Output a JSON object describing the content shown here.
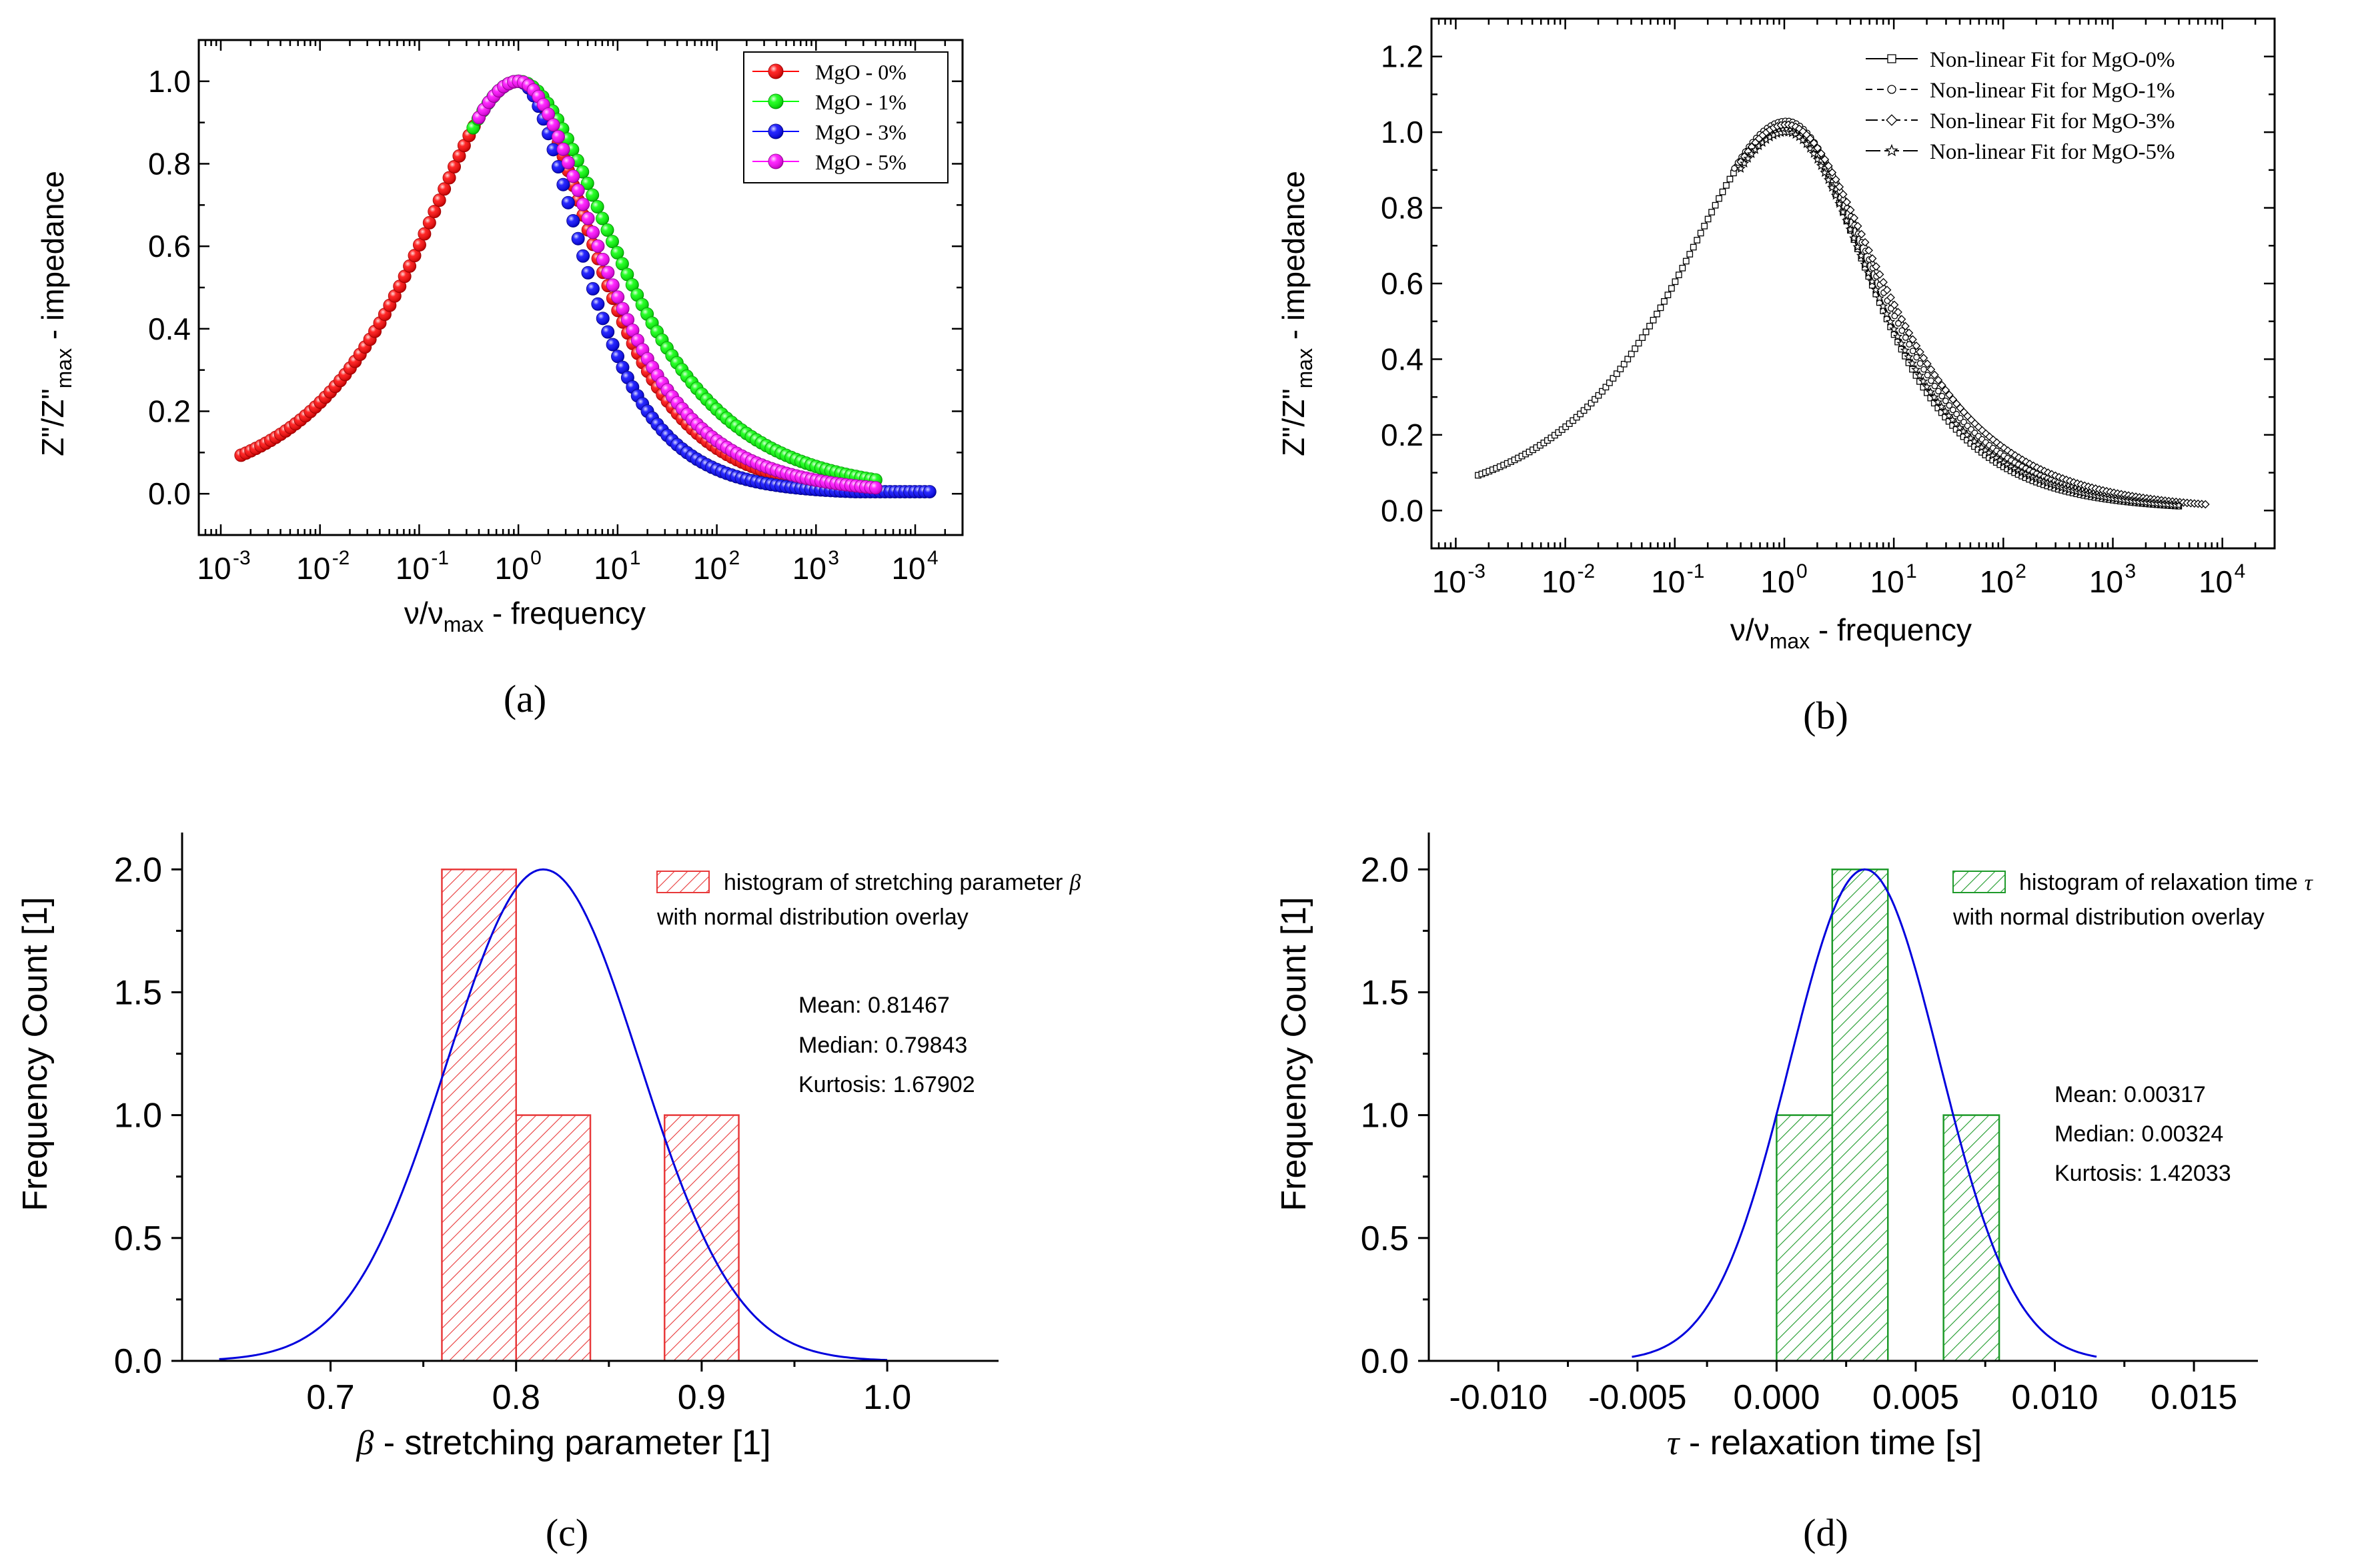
{
  "figure_labels": {
    "a": "(a)",
    "b": "(b)",
    "c": "(c)",
    "d": "(d)"
  },
  "chart_data": [
    {
      "id": "a",
      "type": "scatter",
      "xscale": "log",
      "xlim": [
        0.0006,
        30000
      ],
      "ylim": [
        -0.1,
        1.1
      ],
      "xtick_exponents": [
        "-3",
        "-2",
        "-1",
        "0",
        "1",
        "2",
        "3",
        "4"
      ],
      "ytick_labels": [
        "0.0",
        "0.2",
        "0.4",
        "0.6",
        "0.8",
        "1.0"
      ],
      "ylabel": {
        "a": "Z\"/Z\"",
        "sub": "max",
        "b": " - impedance"
      },
      "xlabel": {
        "a": "ν/ν",
        "sub": "max",
        "b": " - frequency"
      },
      "legend_position": "top-right",
      "series": [
        {
          "name": "MgO - 0%",
          "color": "#ff0000",
          "edge": "#b00000",
          "x_range": [
            0.0016,
            4000
          ],
          "beta": 0.78,
          "taper": 1.0
        },
        {
          "name": "MgO - 1%",
          "color": "#00ff00",
          "edge": "#00a000",
          "x_range": [
            0.35,
            4000
          ],
          "beta": 0.72,
          "taper": 0.85
        },
        {
          "name": "MgO - 3%",
          "color": "#0000ff",
          "edge": "#000090",
          "x_range": [
            0.45,
            14000
          ],
          "beta": 0.95,
          "taper": 1.0
        },
        {
          "name": "MgO - 5%",
          "color": "#ff00ff",
          "edge": "#a000a0",
          "x_range": [
            0.4,
            4000
          ],
          "beta": 0.82,
          "taper": 0.9
        }
      ]
    },
    {
      "id": "b",
      "type": "line",
      "xscale": "log",
      "xlim": [
        0.0006,
        30000
      ],
      "ylim": [
        -0.1,
        1.3
      ],
      "xtick_exponents": [
        "-3",
        "-2",
        "-1",
        "0",
        "1",
        "2",
        "3",
        "4"
      ],
      "ytick_labels": [
        "0.0",
        "0.2",
        "0.4",
        "0.6",
        "0.8",
        "1.0",
        "1.2"
      ],
      "ylabel": {
        "a": "Z\"/Z\"",
        "sub": "max",
        "b": " - impedance"
      },
      "xlabel": {
        "a": "ν/ν",
        "sub": "max",
        "b": " - frequency"
      },
      "legend_position": "top-right",
      "series": [
        {
          "name": "Non-linear Fit for MgO-0%",
          "marker": "square",
          "dash": "",
          "x_range": [
            0.0016,
            4000
          ],
          "beta": 0.78,
          "peak": 1.02
        },
        {
          "name": "Non-linear Fit for MgO-1%",
          "marker": "circle",
          "dash": "10,7",
          "x_range": [
            0.35,
            4000
          ],
          "beta": 0.72,
          "peak": 1.03
        },
        {
          "name": "Non-linear Fit for MgO-3%",
          "marker": "diamond",
          "dash": "18,6,4,6",
          "x_range": [
            0.4,
            7000
          ],
          "beta": 0.68,
          "peak": 1.02
        },
        {
          "name": "Non-linear Fit for MgO-5%",
          "marker": "star",
          "dash": "22,6",
          "x_range": [
            0.4,
            4000
          ],
          "beta": 0.75,
          "peak": 1.0
        }
      ]
    },
    {
      "id": "c",
      "type": "bar",
      "xlim": [
        0.62,
        1.06
      ],
      "ylim": [
        0,
        2.15
      ],
      "xticks": [
        0.7,
        0.8,
        0.9,
        1.0
      ],
      "xtick_labels": [
        "0.7",
        "0.8",
        "0.9",
        "1.0"
      ],
      "ytick_labels": [
        "0.0",
        "0.5",
        "1.0",
        "1.5",
        "2.0"
      ],
      "bins": [
        {
          "x0": 0.76,
          "x1": 0.8,
          "count": 2
        },
        {
          "x0": 0.8,
          "x1": 0.84,
          "count": 1
        },
        {
          "x0": 0.88,
          "x1": 0.92,
          "count": 1
        }
      ],
      "curve": {
        "type": "normal",
        "mean": 0.81467,
        "sd": 0.052,
        "peak": 2.0,
        "x_range": [
          0.64,
          1.0
        ]
      },
      "bar_color": "#e8393a",
      "curve_color": "#0000dd",
      "ylabel": "Frequency Count   [1]",
      "xlabel_sym": "β",
      "xlabel_text": " - stretching parameter   [1]",
      "legend": {
        "line1": "histogram of stretching parameter",
        "sym": "β",
        "line2": "with normal distribution overlay"
      },
      "stats": [
        "Mean: 0.81467",
        "Median: 0.79843",
        "Kurtosis: 1.67902"
      ]
    },
    {
      "id": "d",
      "type": "bar",
      "xlim": [
        -0.0125,
        0.0173
      ],
      "ylim": [
        0,
        2.15
      ],
      "xticks": [
        -0.01,
        -0.005,
        0.0,
        0.005,
        0.01,
        0.015
      ],
      "xtick_labels": [
        "-0.010",
        "-0.005",
        "0.000",
        "0.005",
        "0.010",
        "0.015"
      ],
      "ytick_labels": [
        "0.0",
        "0.5",
        "1.0",
        "1.5",
        "2.0"
      ],
      "bins": [
        {
          "x0": 0.0,
          "x1": 0.002,
          "count": 1
        },
        {
          "x0": 0.002,
          "x1": 0.004,
          "count": 2
        },
        {
          "x0": 0.006,
          "x1": 0.008,
          "count": 1
        }
      ],
      "curve": {
        "type": "normal",
        "mean": 0.00317,
        "sd": 0.0027,
        "peak": 2.0,
        "x_range": [
          -0.0052,
          0.0115
        ]
      },
      "bar_color": "#1e9a2a",
      "curve_color": "#0000dd",
      "ylabel": "Frequency Count   [1]",
      "xlabel_sym": "τ",
      "xlabel_text": " - relaxation time    [s]",
      "legend": {
        "line1": "histogram of relaxation time",
        "sym": "τ",
        "line2": "with normal distribution overlay"
      },
      "stats": [
        "Mean: 0.00317",
        "Median: 0.00324",
        "Kurtosis: 1.42033"
      ]
    }
  ]
}
